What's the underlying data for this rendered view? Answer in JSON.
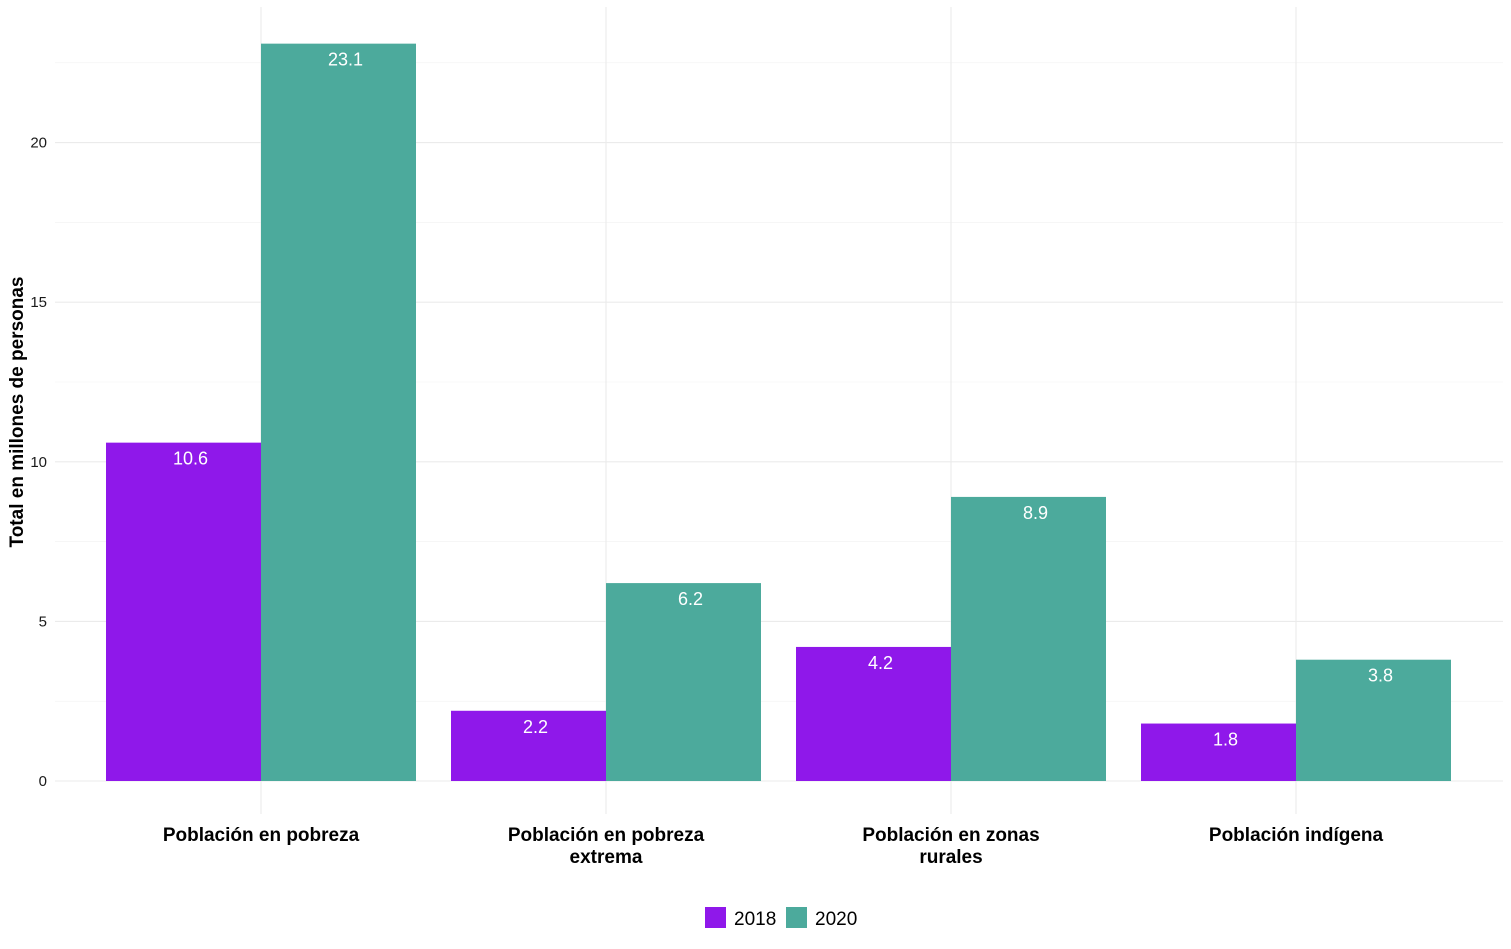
{
  "chart_data": {
    "type": "bar",
    "categories": [
      [
        "Población en pobreza"
      ],
      [
        "Población en pobreza",
        "extrema"
      ],
      [
        "Población en zonas",
        "rurales"
      ],
      [
        "Población indígena"
      ]
    ],
    "series": [
      {
        "name": "2018",
        "color": "#8f18ea",
        "values": [
          10.6,
          2.2,
          4.2,
          1.8
        ],
        "labels": [
          "10.6",
          "2.2",
          "4.2",
          "1.8"
        ]
      },
      {
        "name": "2020",
        "color": "#4caa9c",
        "values": [
          23.1,
          6.2,
          8.9,
          3.8
        ],
        "labels": [
          "23.1",
          "6.2",
          "8.9",
          "3.8"
        ]
      }
    ],
    "title": "",
    "xlabel": "",
    "ylabel": "Total en millones de personas",
    "ylim": [
      0,
      24.3
    ],
    "yticks": [
      0,
      5,
      10,
      15,
      20
    ],
    "ytick_labels": [
      "0",
      "5",
      "10",
      "15",
      "20"
    ],
    "grid": true,
    "legend_position": "bottom"
  }
}
